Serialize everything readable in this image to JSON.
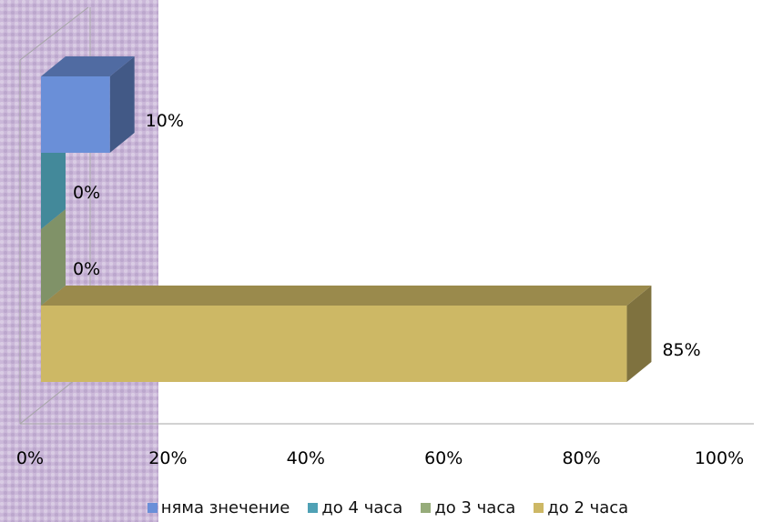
{
  "chart_data": {
    "type": "bar",
    "orientation": "horizontal",
    "three_d": true,
    "categories": [
      "",
      "",
      "",
      ""
    ],
    "series": [
      {
        "name": "до 2 часа",
        "value": 85,
        "label": "85%",
        "color": "#cdb865"
      },
      {
        "name": "до 3 часа",
        "value": 0,
        "label": "0%",
        "color": "#96ac7a"
      },
      {
        "name": "до 4 часа",
        "value": 0,
        "label": "0%",
        "color": "#4fa1b5"
      },
      {
        "name": "няма знечение",
        "value": 10,
        "label": "10%",
        "color": "#6a8fd8"
      }
    ],
    "x_ticks": [
      "0%",
      "20%",
      "40%",
      "60%",
      "80%",
      "100%"
    ],
    "xlim": [
      0,
      100
    ],
    "grid": false,
    "legend_position": "bottom",
    "legend_order": [
      "няма знечение",
      "до 4 часа",
      "до 3 часа",
      "до 2 часа"
    ]
  }
}
